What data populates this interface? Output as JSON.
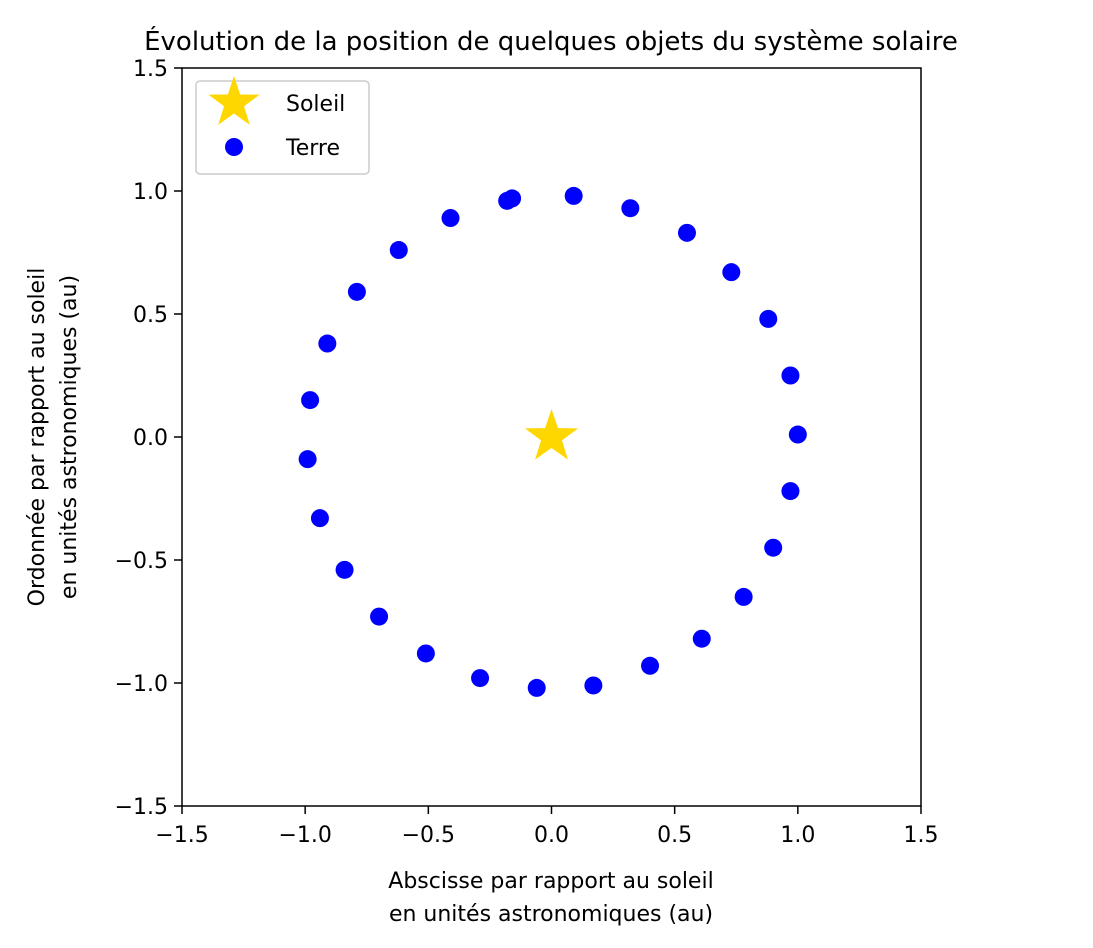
{
  "chart_data": {
    "type": "scatter",
    "title": "Évolution de la position de quelques objets du système solaire",
    "xlabel_lines": [
      "Abscisse par rapport au soleil",
      "en unités astronomiques (au)"
    ],
    "ylabel_lines": [
      "Ordonnée par rapport au soleil",
      "en unités astronomiques (au)"
    ],
    "xlim": [
      -1.5,
      1.5
    ],
    "ylim": [
      -1.5,
      1.5
    ],
    "xticks": [
      -1.5,
      -1.0,
      -0.5,
      0.0,
      0.5,
      1.0,
      1.5
    ],
    "yticks": [
      -1.5,
      -1.0,
      -0.5,
      0.0,
      0.5,
      1.0,
      1.5
    ],
    "xtick_labels": [
      "−1.5",
      "−1.0",
      "−0.5",
      "0.0",
      "0.5",
      "1.0",
      "1.5"
    ],
    "ytick_labels": [
      "−1.5",
      "−1.0",
      "−0.5",
      "0.0",
      "0.5",
      "1.0",
      "1.5"
    ],
    "grid": false,
    "legend_position": "top-left",
    "series": [
      {
        "name": "Soleil",
        "marker": "star",
        "color": "#FFD700",
        "points": [
          [
            0.0,
            0.0
          ]
        ]
      },
      {
        "name": "Terre",
        "marker": "circle",
        "color": "#0000FF",
        "points": [
          [
            1.0,
            0.01
          ],
          [
            0.97,
            -0.22
          ],
          [
            0.9,
            -0.45
          ],
          [
            0.78,
            -0.65
          ],
          [
            0.61,
            -0.82
          ],
          [
            0.4,
            -0.93
          ],
          [
            0.17,
            -1.01
          ],
          [
            -0.06,
            -1.02
          ],
          [
            -0.29,
            -0.98
          ],
          [
            -0.51,
            -0.88
          ],
          [
            -0.7,
            -0.73
          ],
          [
            -0.84,
            -0.54
          ],
          [
            -0.94,
            -0.33
          ],
          [
            -0.99,
            -0.09
          ],
          [
            -0.98,
            0.15
          ],
          [
            -0.91,
            0.38
          ],
          [
            -0.79,
            0.59
          ],
          [
            -0.62,
            0.76
          ],
          [
            -0.41,
            0.89
          ],
          [
            -0.18,
            0.96
          ],
          [
            -0.16,
            0.97
          ],
          [
            0.09,
            0.98
          ],
          [
            0.32,
            0.93
          ],
          [
            0.55,
            0.83
          ],
          [
            0.73,
            0.67
          ],
          [
            0.88,
            0.48
          ],
          [
            0.97,
            0.25
          ]
        ]
      }
    ]
  }
}
